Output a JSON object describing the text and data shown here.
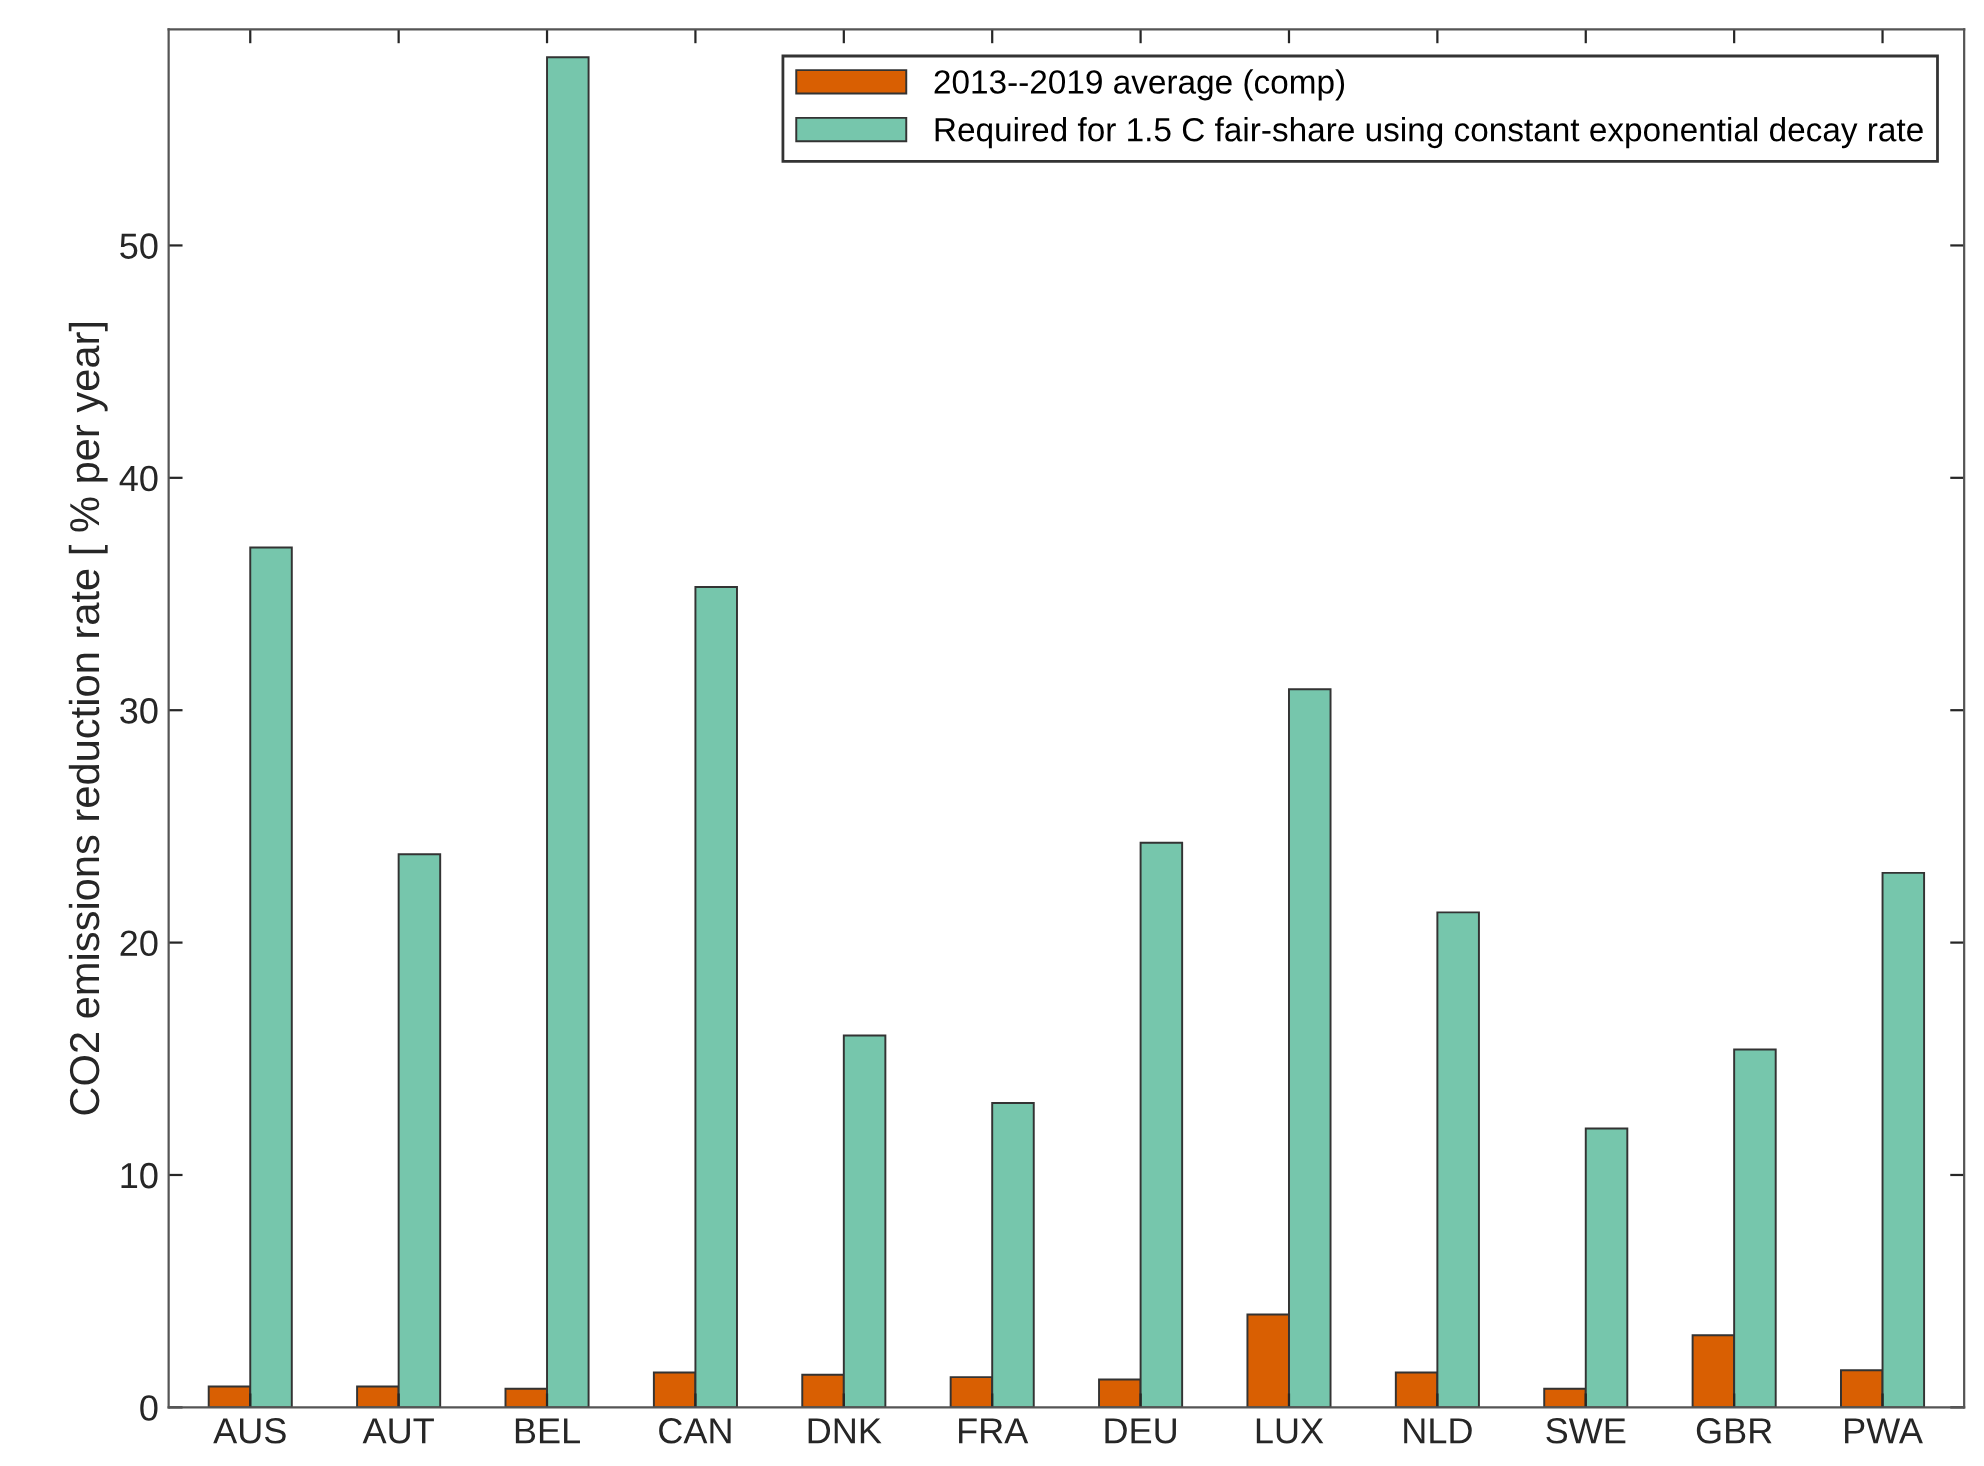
{
  "chart_data": {
    "type": "bar",
    "ylabel": "CO2 emissions reduction rate [ % per year]",
    "categories": [
      "AUS",
      "AUT",
      "BEL",
      "CAN",
      "DNK",
      "FRA",
      "DEU",
      "LUX",
      "NLD",
      "SWE",
      "GBR",
      "PWA"
    ],
    "series": [
      {
        "name": "2013--2019 average (comp)",
        "color": "#d95f02",
        "values": [
          0.9,
          0.9,
          0.8,
          1.5,
          1.4,
          1.3,
          1.2,
          4.0,
          1.5,
          0.8,
          3.1,
          1.6
        ]
      },
      {
        "name": "Required for 1.5 C fair-share using constant exponential decay rate",
        "color": "#76c6ac",
        "values": [
          37.0,
          23.8,
          58.1,
          35.3,
          16.0,
          13.1,
          24.3,
          30.9,
          21.3,
          12.0,
          15.4,
          23.0
        ]
      }
    ],
    "ylim": [
      0,
      59.3
    ],
    "yticks": [
      0,
      10,
      20,
      30,
      40,
      50
    ],
    "grid": false,
    "legend": "top right"
  }
}
